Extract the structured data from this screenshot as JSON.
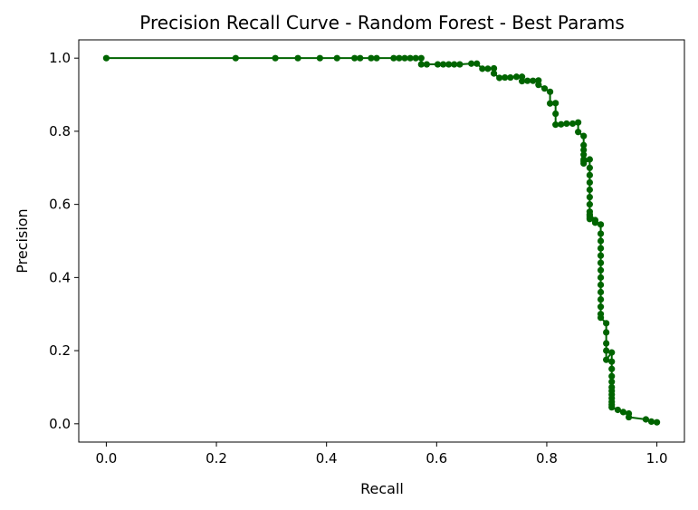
{
  "chart_data": {
    "type": "line",
    "title": "Precision Recall Curve - Random Forest - Best Params",
    "xlabel": "Recall",
    "ylabel": "Precision",
    "xlim": [
      -0.05,
      1.05
    ],
    "ylim": [
      -0.05,
      1.05
    ],
    "xticks": [
      0.0,
      0.2,
      0.4,
      0.6,
      0.8,
      1.0
    ],
    "yticks": [
      0.0,
      0.2,
      0.4,
      0.6,
      0.8,
      1.0
    ],
    "xtick_labels": [
      "0.0",
      "0.2",
      "0.4",
      "0.6",
      "0.8",
      "1.0"
    ],
    "ytick_labels": [
      "0.0",
      "0.2",
      "0.4",
      "0.6",
      "0.8",
      "1.0"
    ],
    "grid": false,
    "legend": "none",
    "marker": "circle",
    "color": "#006400",
    "series": [
      {
        "x": [
          0.0,
          0.235,
          0.307,
          0.348,
          0.388,
          0.419,
          0.451,
          0.461,
          0.481,
          0.491,
          0.522,
          0.532,
          0.542,
          0.552,
          0.562,
          0.572,
          0.572,
          0.582,
          0.602,
          0.612,
          0.622,
          0.632,
          0.642,
          0.663,
          0.673,
          0.683,
          0.693,
          0.704,
          0.704,
          0.714,
          0.724,
          0.734,
          0.745,
          0.755,
          0.755,
          0.765,
          0.775,
          0.785,
          0.785,
          0.796,
          0.806,
          0.806,
          0.816,
          0.816,
          0.816,
          0.826,
          0.836,
          0.847,
          0.857,
          0.857,
          0.867,
          0.867,
          0.867,
          0.867,
          0.867,
          0.867,
          0.867,
          0.878,
          0.878,
          0.878,
          0.878,
          0.878,
          0.878,
          0.878,
          0.878,
          0.878,
          0.878,
          0.878,
          0.878,
          0.888,
          0.888,
          0.898,
          0.898,
          0.898,
          0.898,
          0.898,
          0.898,
          0.898,
          0.898,
          0.898,
          0.898,
          0.898,
          0.898,
          0.898,
          0.898,
          0.908,
          0.908,
          0.908,
          0.908,
          0.908,
          0.918,
          0.918,
          0.918,
          0.918,
          0.918,
          0.918,
          0.918,
          0.918,
          0.918,
          0.918,
          0.918,
          0.918,
          0.929,
          0.939,
          0.949,
          0.949,
          0.98,
          0.99,
          1.0
        ],
        "y": [
          1.0,
          1.0,
          1.0,
          1.0,
          1.0,
          1.0,
          1.0,
          1.0,
          1.0,
          1.0,
          1.0,
          1.0,
          1.0,
          1.0,
          1.0,
          1.0,
          0.983,
          0.983,
          0.983,
          0.983,
          0.983,
          0.983,
          0.983,
          0.985,
          0.985,
          0.971,
          0.971,
          0.972,
          0.958,
          0.946,
          0.947,
          0.947,
          0.949,
          0.949,
          0.937,
          0.938,
          0.938,
          0.939,
          0.927,
          0.917,
          0.908,
          0.876,
          0.877,
          0.848,
          0.818,
          0.819,
          0.821,
          0.821,
          0.824,
          0.798,
          0.787,
          0.762,
          0.749,
          0.736,
          0.723,
          0.718,
          0.712,
          0.723,
          0.7,
          0.68,
          0.66,
          0.64,
          0.62,
          0.6,
          0.58,
          0.565,
          0.57,
          0.56,
          0.573,
          0.557,
          0.55,
          0.545,
          0.52,
          0.5,
          0.48,
          0.46,
          0.44,
          0.42,
          0.4,
          0.38,
          0.36,
          0.34,
          0.32,
          0.3,
          0.29,
          0.275,
          0.25,
          0.22,
          0.2,
          0.175,
          0.195,
          0.17,
          0.15,
          0.13,
          0.115,
          0.1,
          0.09,
          0.08,
          0.07,
          0.06,
          0.052,
          0.045,
          0.038,
          0.032,
          0.028,
          0.018,
          0.012,
          0.006,
          0.004
        ]
      }
    ]
  }
}
